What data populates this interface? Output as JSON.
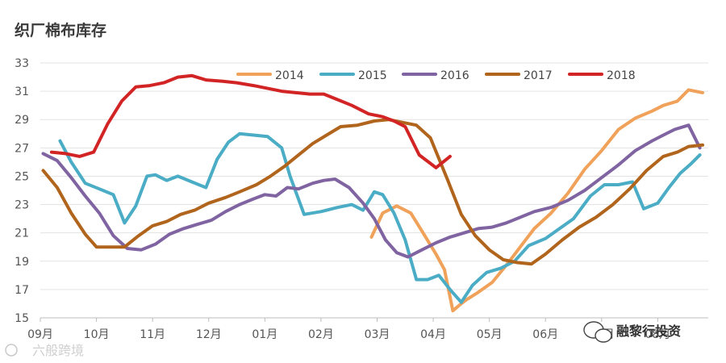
{
  "chart_data": {
    "type": "line",
    "title": "织厂棉布库存",
    "xlabel": "",
    "ylabel": "",
    "ylim": [
      15,
      33
    ],
    "yticks": [
      15,
      17,
      19,
      21,
      23,
      25,
      27,
      29,
      31,
      33
    ],
    "grid": "horizontal",
    "legend_position": "top",
    "xrange": [
      0,
      11.9
    ],
    "categories": [
      "09月",
      "10月",
      "11月",
      "12月",
      "01月",
      "02月",
      "03月",
      "04月",
      "05月",
      "06月",
      "07月",
      "08月"
    ],
    "series": [
      {
        "name": "2014",
        "color": "#f0a15a",
        "x": [
          5.9,
          6.1,
          6.35,
          6.6,
          6.85,
          7.05,
          7.2,
          7.35,
          7.5,
          7.6,
          7.8,
          8.05,
          8.3,
          8.55,
          8.8,
          9.1,
          9.4,
          9.7,
          10.0,
          10.3,
          10.6,
          10.9,
          11.1,
          11.35,
          11.55,
          11.8
        ],
        "values": [
          20.7,
          22.4,
          22.9,
          22.4,
          20.8,
          19.5,
          18.4,
          15.5,
          16.0,
          16.3,
          16.8,
          17.5,
          18.7,
          20.0,
          21.3,
          22.4,
          23.8,
          25.5,
          26.8,
          28.3,
          29.1,
          29.6,
          30.0,
          30.3,
          31.1,
          30.9
        ]
      },
      {
        "name": "2015",
        "color": "#4bacc6",
        "x": [
          0.35,
          0.55,
          0.8,
          1.05,
          1.3,
          1.5,
          1.7,
          1.9,
          2.05,
          2.25,
          2.45,
          2.7,
          2.95,
          3.15,
          3.35,
          3.55,
          3.8,
          4.05,
          4.3,
          4.45,
          4.7,
          5.0,
          5.3,
          5.55,
          5.75,
          5.95,
          6.1,
          6.3,
          6.5,
          6.7,
          6.9,
          7.1,
          7.3,
          7.5,
          7.7,
          7.95,
          8.2,
          8.45,
          8.7,
          9.0,
          9.25,
          9.5,
          9.8,
          10.05,
          10.3,
          10.55,
          10.75,
          11.0,
          11.2,
          11.4,
          11.6,
          11.75
        ],
        "values": [
          27.5,
          26.0,
          24.5,
          24.1,
          23.7,
          21.7,
          22.9,
          25.0,
          25.1,
          24.7,
          25.0,
          24.6,
          24.2,
          26.2,
          27.4,
          28.0,
          27.9,
          27.8,
          27.0,
          25.0,
          22.3,
          22.5,
          22.8,
          23.0,
          22.6,
          23.9,
          23.7,
          22.4,
          20.5,
          17.7,
          17.7,
          18.0,
          17.0,
          16.1,
          17.3,
          18.2,
          18.5,
          19.0,
          20.1,
          20.6,
          21.3,
          22.0,
          23.6,
          24.4,
          24.4,
          24.6,
          22.7,
          23.1,
          24.2,
          25.2,
          25.9,
          26.5
        ]
      },
      {
        "name": "2016",
        "color": "#8064a2",
        "x": [
          0.05,
          0.3,
          0.55,
          0.8,
          1.05,
          1.3,
          1.55,
          1.8,
          2.05,
          2.3,
          2.55,
          2.8,
          3.05,
          3.3,
          3.55,
          3.8,
          4.0,
          4.2,
          4.4,
          4.6,
          4.85,
          5.05,
          5.25,
          5.5,
          5.75,
          5.95,
          6.15,
          6.35,
          6.55,
          6.8,
          7.05,
          7.3,
          7.55,
          7.8,
          8.05,
          8.3,
          8.55,
          8.8,
          9.1,
          9.4,
          9.7,
          10.0,
          10.3,
          10.6,
          10.9,
          11.1,
          11.3,
          11.55,
          11.75
        ],
        "values": [
          26.6,
          26.1,
          24.9,
          23.6,
          22.4,
          20.8,
          19.9,
          19.8,
          20.2,
          20.9,
          21.3,
          21.6,
          21.9,
          22.5,
          23.0,
          23.4,
          23.7,
          23.6,
          24.2,
          24.1,
          24.5,
          24.7,
          24.8,
          24.2,
          23.1,
          22.0,
          20.5,
          19.6,
          19.3,
          19.8,
          20.3,
          20.7,
          21.0,
          21.3,
          21.4,
          21.7,
          22.1,
          22.5,
          22.8,
          23.3,
          24.0,
          24.9,
          25.8,
          26.8,
          27.5,
          27.9,
          28.3,
          28.6,
          27.0
        ]
      },
      {
        "name": "2017",
        "color": "#b0641c",
        "x": [
          0.05,
          0.3,
          0.55,
          0.8,
          1.0,
          1.25,
          1.5,
          1.75,
          2.0,
          2.25,
          2.5,
          2.75,
          3.0,
          3.3,
          3.55,
          3.85,
          4.1,
          4.35,
          4.6,
          4.85,
          5.1,
          5.35,
          5.65,
          5.95,
          6.2,
          6.45,
          6.7,
          6.95,
          7.25,
          7.5,
          7.75,
          8.0,
          8.25,
          8.5,
          8.75,
          9.0,
          9.3,
          9.6,
          9.9,
          10.2,
          10.5,
          10.8,
          11.1,
          11.35,
          11.55,
          11.8
        ],
        "values": [
          25.4,
          24.2,
          22.4,
          20.9,
          20.0,
          20.0,
          20.0,
          20.8,
          21.5,
          21.8,
          22.3,
          22.6,
          23.1,
          23.5,
          23.9,
          24.4,
          25.0,
          25.7,
          26.5,
          27.3,
          27.9,
          28.5,
          28.6,
          28.9,
          29.0,
          28.8,
          28.6,
          27.7,
          24.8,
          22.3,
          20.8,
          19.8,
          19.1,
          18.9,
          18.8,
          19.5,
          20.5,
          21.4,
          22.1,
          23.0,
          24.1,
          25.4,
          26.4,
          26.7,
          27.1,
          27.2
        ]
      },
      {
        "name": "2018",
        "color": "#d22424",
        "x": [
          0.2,
          0.45,
          0.7,
          0.95,
          1.2,
          1.45,
          1.7,
          1.95,
          2.2,
          2.45,
          2.7,
          2.95,
          3.25,
          3.5,
          3.8,
          4.05,
          4.3,
          4.55,
          4.8,
          5.05,
          5.3,
          5.55,
          5.85,
          6.1,
          6.3,
          6.5,
          6.75,
          7.05,
          7.3
        ],
        "values": [
          26.7,
          26.6,
          26.4,
          26.7,
          28.7,
          30.3,
          31.3,
          31.4,
          31.6,
          32.0,
          32.1,
          31.8,
          31.7,
          31.6,
          31.4,
          31.2,
          31.0,
          30.9,
          30.8,
          30.8,
          30.4,
          30.0,
          29.4,
          29.2,
          28.9,
          28.5,
          26.5,
          25.6,
          26.4
        ]
      }
    ]
  },
  "watermark": {
    "left": "六般跨境",
    "right": "融黎行投资"
  }
}
